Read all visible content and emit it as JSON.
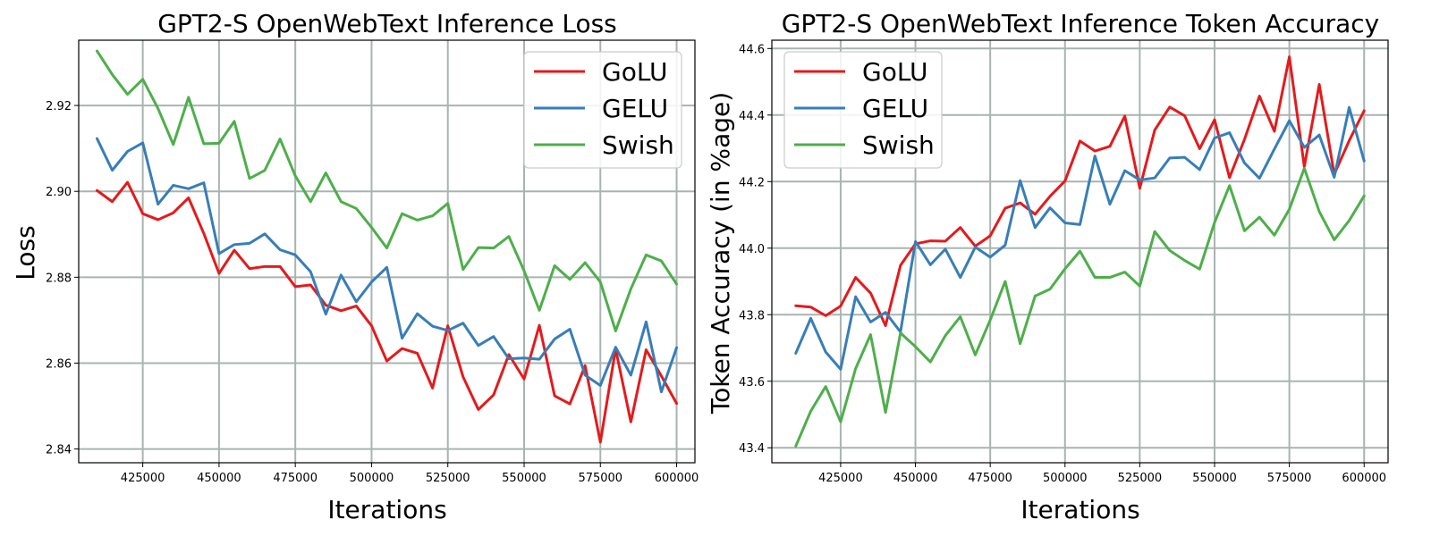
{
  "chart_data": [
    {
      "type": "line",
      "title": "GPT2-S OpenWebText Inference Loss",
      "xlabel": "Iterations",
      "ylabel": "Loss",
      "xlim": [
        404000,
        606000
      ],
      "ylim": [
        2.8368,
        2.9352
      ],
      "xticks": [
        425000,
        450000,
        475000,
        500000,
        525000,
        550000,
        575000,
        600000
      ],
      "yticks": [
        2.84,
        2.86,
        2.88,
        2.9,
        2.92
      ],
      "ytick_labels": [
        "2.84",
        "2.86",
        "2.88",
        "2.90",
        "2.92"
      ],
      "grid": true,
      "legend_position": "top-right",
      "x": [
        410000,
        415000,
        420000,
        425000,
        430000,
        435000,
        440000,
        445000,
        450000,
        455000,
        460000,
        465000,
        470000,
        475000,
        480000,
        485000,
        490000,
        495000,
        500000,
        505000,
        510000,
        515000,
        520000,
        525000,
        530000,
        535000,
        540000,
        545000,
        550000,
        555000,
        560000,
        565000,
        570000,
        575000,
        580000,
        585000,
        590000,
        595000,
        600000
      ],
      "series": [
        {
          "name": "GoLU",
          "color": "#e41a1c",
          "values": [
            2.9002,
            2.8976,
            2.9021,
            2.8948,
            2.8934,
            2.895,
            2.8985,
            2.8902,
            2.8809,
            2.8863,
            2.882,
            2.8825,
            2.8825,
            2.8778,
            2.8782,
            2.8735,
            2.8722,
            2.8733,
            2.8687,
            2.8605,
            2.8634,
            2.8623,
            2.8542,
            2.8687,
            2.8568,
            2.8492,
            2.8526,
            2.862,
            2.8563,
            2.8688,
            2.8524,
            2.8505,
            2.8594,
            2.8416,
            2.8633,
            2.8463,
            2.8631,
            2.857,
            2.8506
          ]
        },
        {
          "name": "GELU",
          "color": "#377eb8",
          "values": [
            2.9123,
            2.9049,
            2.9093,
            2.9113,
            2.897,
            2.9014,
            2.9006,
            2.902,
            2.8855,
            2.8876,
            2.8879,
            2.8901,
            2.8864,
            2.8852,
            2.8813,
            2.8714,
            2.8805,
            2.8743,
            2.8789,
            2.8823,
            2.8658,
            2.8715,
            2.8686,
            2.8676,
            2.8693,
            2.8641,
            2.8662,
            2.861,
            2.8612,
            2.8609,
            2.8656,
            2.8679,
            2.8572,
            2.8548,
            2.8637,
            2.8572,
            2.8696,
            2.8533,
            2.8636
          ]
        },
        {
          "name": "Swish",
          "color": "#4daf4a",
          "values": [
            2.9327,
            2.9272,
            2.9226,
            2.9261,
            2.9193,
            2.9109,
            2.9219,
            2.9111,
            2.9112,
            2.9163,
            2.903,
            2.9049,
            2.9122,
            2.9036,
            2.8976,
            2.9043,
            2.8976,
            2.896,
            2.8916,
            2.8868,
            2.8948,
            2.8933,
            2.8943,
            2.8972,
            2.8818,
            2.8869,
            2.8868,
            2.8895,
            2.8815,
            2.8723,
            2.8827,
            2.8795,
            2.8834,
            2.8789,
            2.8675,
            2.8773,
            2.8852,
            2.8838,
            2.8784
          ]
        }
      ]
    },
    {
      "type": "line",
      "title": "GPT2-S OpenWebText Inference Token Accuracy",
      "xlabel": "Iterations",
      "ylabel": "Token Accuracy (in %age)",
      "xlim": [
        402000,
        608000
      ],
      "ylim": [
        43.355,
        44.625
      ],
      "xticks": [
        425000,
        450000,
        475000,
        500000,
        525000,
        550000,
        575000,
        600000
      ],
      "yticks": [
        43.4,
        43.6,
        43.8,
        44.0,
        44.2,
        44.4,
        44.6
      ],
      "ytick_labels": [
        "43.4",
        "43.6",
        "43.8",
        "44.0",
        "44.2",
        "44.4",
        "44.6"
      ],
      "grid": true,
      "legend_position": "top-left",
      "x": [
        410000,
        415000,
        420000,
        425000,
        430000,
        435000,
        440000,
        445000,
        450000,
        455000,
        460000,
        465000,
        470000,
        475000,
        480000,
        485000,
        490000,
        495000,
        500000,
        505000,
        510000,
        515000,
        520000,
        525000,
        530000,
        535000,
        540000,
        545000,
        550000,
        555000,
        560000,
        565000,
        570000,
        575000,
        580000,
        585000,
        590000,
        595000,
        600000
      ],
      "series": [
        {
          "name": "GoLU",
          "color": "#e41a1c",
          "values": [
            43.827,
            43.823,
            43.797,
            43.826,
            43.912,
            43.865,
            43.767,
            43.948,
            44.013,
            44.022,
            44.021,
            44.062,
            44.006,
            44.037,
            44.12,
            44.136,
            44.102,
            44.156,
            44.202,
            44.322,
            44.292,
            44.306,
            44.397,
            44.18,
            44.355,
            44.424,
            44.398,
            44.299,
            44.386,
            44.212,
            44.327,
            44.457,
            44.351,
            44.575,
            44.245,
            44.492,
            44.222,
            44.323,
            44.413
          ]
        },
        {
          "name": "GELU",
          "color": "#377eb8",
          "values": [
            43.684,
            43.789,
            43.688,
            43.636,
            43.854,
            43.778,
            43.807,
            43.748,
            44.02,
            43.95,
            43.997,
            43.912,
            44.003,
            43.973,
            44.009,
            44.203,
            44.062,
            44.121,
            44.076,
            44.071,
            44.277,
            44.132,
            44.233,
            44.205,
            44.211,
            44.271,
            44.273,
            44.236,
            44.331,
            44.347,
            44.256,
            44.21,
            44.298,
            44.383,
            44.303,
            44.34,
            44.213,
            44.423,
            44.262
          ]
        },
        {
          "name": "Swish",
          "color": "#4daf4a",
          "values": [
            43.405,
            43.51,
            43.584,
            43.478,
            43.638,
            43.74,
            43.506,
            43.745,
            43.704,
            43.658,
            43.737,
            43.794,
            43.679,
            43.784,
            43.9,
            43.713,
            43.856,
            43.877,
            43.938,
            43.991,
            43.912,
            43.912,
            43.928,
            43.886,
            44.05,
            43.993,
            43.963,
            43.937,
            44.077,
            44.188,
            44.052,
            44.093,
            44.039,
            44.117,
            44.24,
            44.11,
            44.025,
            44.083,
            44.157
          ]
        }
      ]
    }
  ]
}
